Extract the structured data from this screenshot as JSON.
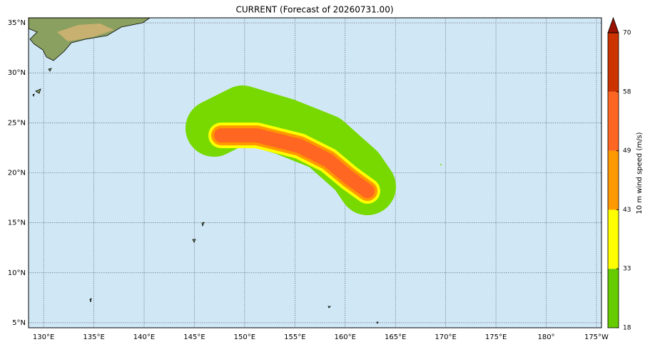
{
  "map": {
    "title": "CURRENT (Forecast of 20260731.00)",
    "lonlim": [
      128.5,
      185.5
    ],
    "latlim": [
      4.5,
      35.5
    ],
    "lonticks": [
      {
        "value": 130,
        "label": "130°E"
      },
      {
        "value": 135,
        "label": "135°E"
      },
      {
        "value": 140,
        "label": "140°E"
      },
      {
        "value": 145,
        "label": "145°E"
      },
      {
        "value": 150,
        "label": "150°E"
      },
      {
        "value": 155,
        "label": "155°E"
      },
      {
        "value": 160,
        "label": "160°E"
      },
      {
        "value": 165,
        "label": "165°E"
      },
      {
        "value": 170,
        "label": "170°E"
      },
      {
        "value": 175,
        "label": "175°E"
      },
      {
        "value": 180,
        "label": "180°"
      },
      {
        "value": 185,
        "label": "175°W"
      }
    ],
    "latticks": [
      {
        "value": 5,
        "label": "5°N"
      },
      {
        "value": 10,
        "label": "10°N"
      },
      {
        "value": 15,
        "label": "15°N"
      },
      {
        "value": 20,
        "label": "20°N"
      },
      {
        "value": 25,
        "label": "25°N"
      },
      {
        "value": 30,
        "label": "30°N"
      },
      {
        "value": 35,
        "label": "35°N"
      }
    ],
    "colorbar": {
      "label": "10 m wind speed (m/s)",
      "levels": [
        18,
        33,
        43,
        49,
        58,
        70
      ],
      "colors": [
        "#66cc00",
        "#ffff00",
        "#ff9900",
        "#ff6622",
        "#cc3300"
      ],
      "extend_color": "#991100"
    }
  }
}
